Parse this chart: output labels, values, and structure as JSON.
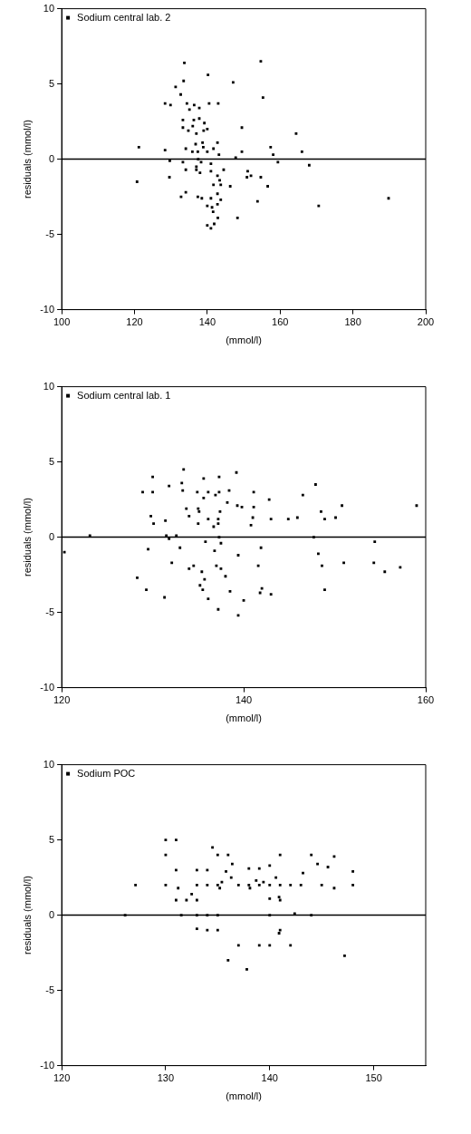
{
  "chart_data": [
    {
      "type": "scatter",
      "xlabel": "(mmol/l)",
      "ylabel": "residuals (mmol/l)",
      "xlim": [
        100,
        200
      ],
      "xticks": [
        100,
        120,
        140,
        160,
        180,
        200
      ],
      "ylim": [
        -10,
        10
      ],
      "yticks": [
        -10,
        -5,
        0,
        5,
        10
      ],
      "legend": "top left",
      "marker": "square",
      "grid": false,
      "ref_lines": [
        {
          "axis": "y",
          "value": 0
        }
      ],
      "series": [
        {
          "name": "Sodium central lab. 2",
          "color": "#000000",
          "x": [
            133.7,
            154.7,
            140.2,
            147.1,
            133.5,
            131.3,
            132.7,
            155.3,
            128.4,
            129.9,
            134.4,
            136.4,
            135.1,
            137.8,
            140.5,
            143.0,
            137.8,
            136.3,
            133.3,
            139.2,
            133.3,
            136.0,
            134.8,
            137.0,
            139.0,
            140.0,
            149.5,
            164.4,
            136.8,
            138.7,
            142.8,
            138.9,
            141.7,
            121.2,
            128.4,
            134.1,
            135.9,
            137.4,
            140.0,
            143.2,
            149.5,
            157.4,
            166.0,
            158.1,
            147.8,
            129.7,
            133.3,
            137.5,
            138.3,
            141.0,
            159.4,
            168.0,
            141.0,
            144.5,
            134.1,
            137.0,
            137.0,
            138.0,
            151.1,
            142.8,
            129.6,
            143.4,
            150.9,
            152.0,
            154.7,
            120.7,
            141.7,
            143.7,
            146.3,
            156.6,
            132.8,
            134.1,
            137.4,
            138.5,
            141.0,
            142.8,
            143.7,
            142.8,
            140.0,
            141.3,
            141.6,
            153.8,
            170.6,
            189.8,
            148.3,
            142.9,
            141.9,
            140.0,
            141.0
          ],
          "values": [
            6.4,
            6.5,
            5.6,
            5.1,
            5.2,
            4.8,
            4.3,
            4.1,
            3.7,
            3.6,
            3.7,
            3.6,
            3.3,
            3.4,
            3.7,
            3.7,
            2.7,
            2.6,
            2.6,
            2.4,
            2.1,
            2.2,
            1.9,
            1.7,
            1.9,
            2.0,
            2.1,
            1.7,
            1.0,
            1.1,
            1.1,
            0.8,
            0.7,
            0.8,
            0.6,
            0.7,
            0.5,
            0.5,
            0.5,
            0.3,
            0.5,
            0.8,
            0.5,
            0.3,
            0.1,
            -0.1,
            -0.2,
            0.0,
            -0.2,
            -0.3,
            -0.2,
            -0.4,
            -0.8,
            -0.7,
            -0.7,
            -0.5,
            -0.7,
            -0.9,
            -0.8,
            -1.1,
            -1.2,
            -1.4,
            -1.2,
            -1.1,
            -1.2,
            -1.5,
            -1.7,
            -1.7,
            -1.8,
            -1.8,
            -2.5,
            -2.2,
            -2.5,
            -2.6,
            -2.6,
            -2.3,
            -2.7,
            -3.0,
            -3.1,
            -3.2,
            -3.5,
            -2.8,
            -3.1,
            -2.6,
            -3.9,
            -3.9,
            -4.3,
            -4.4,
            -4.6
          ]
        }
      ]
    },
    {
      "type": "scatter",
      "xlabel": "(mmol/l)",
      "ylabel": "residuals (mmol/l)",
      "xlim": [
        120,
        160
      ],
      "xticks": [
        120,
        140,
        160
      ],
      "ylim": [
        -10,
        10
      ],
      "yticks": [
        -10,
        -5,
        0,
        5,
        10
      ],
      "legend": "top left",
      "marker": "square",
      "grid": false,
      "ref_lines": [
        {
          "axis": "y",
          "value": 0
        }
      ],
      "series": [
        {
          "name": "Sodium central lab. 1",
          "color": "#000000",
          "x": [
            133.4,
            130.0,
            135.6,
            137.3,
            139.2,
            131.8,
            133.2,
            133.3,
            128.9,
            130.0,
            134.9,
            136.1,
            135.6,
            136.9,
            137.3,
            138.4,
            141.1,
            142.8,
            146.5,
            147.9,
            138.2,
            139.3,
            139.8,
            141.1,
            133.7,
            135.0,
            135.1,
            134.0,
            137.4,
            148.5,
            150.8,
            129.8,
            131.4,
            130.1,
            135.0,
            136.1,
            137.2,
            137.2,
            136.7,
            141.0,
            140.8,
            143.0,
            144.9,
            145.9,
            148.9,
            150.1,
            131.5,
            131.8,
            132.6,
            135.8,
            137.3,
            137.5,
            147.7,
            133.0,
            129.5,
            136.8,
            141.9,
            154.4,
            139.4,
            148.2,
            132.1,
            134.5,
            134.0,
            135.4,
            137.0,
            137.5,
            138.0,
            141.6,
            148.6,
            151.0,
            154.3,
            155.5,
            157.2,
            135.7,
            135.2,
            135.5,
            128.3,
            129.3,
            131.3,
            136.1,
            138.5,
            140.0,
            142.0,
            141.8,
            143.0,
            148.9,
            137.2,
            139.4,
            120.3,
            123.1,
            159.0
          ],
          "values": [
            4.5,
            4.0,
            3.9,
            4.0,
            4.3,
            3.4,
            3.6,
            3.1,
            3.0,
            3.0,
            3.0,
            3.0,
            2.6,
            2.8,
            3.0,
            3.1,
            3.0,
            2.5,
            2.8,
            3.5,
            2.3,
            2.1,
            2.0,
            2.0,
            1.9,
            1.9,
            1.7,
            1.4,
            1.7,
            1.7,
            2.1,
            1.4,
            1.1,
            0.9,
            0.9,
            1.2,
            1.2,
            0.9,
            0.7,
            1.3,
            0.8,
            1.2,
            1.2,
            1.3,
            1.2,
            1.3,
            0.1,
            -0.1,
            0.1,
            -0.3,
            0.0,
            -0.4,
            0.0,
            -0.7,
            -0.8,
            -0.9,
            -0.7,
            -0.3,
            -1.2,
            -1.1,
            -1.7,
            -1.9,
            -2.1,
            -2.3,
            -1.9,
            -2.1,
            -2.6,
            -1.9,
            -1.9,
            -1.7,
            -1.7,
            -2.3,
            -2.0,
            -2.8,
            -3.2,
            -3.5,
            -2.7,
            -3.5,
            -4.0,
            -4.1,
            -3.6,
            -4.2,
            -3.4,
            -3.7,
            -3.8,
            -3.5,
            -4.8,
            -5.2,
            -1.0,
            0.1,
            2.1
          ]
        }
      ]
    },
    {
      "type": "scatter",
      "xlabel": "(mmol/l)",
      "ylabel": "residuals (mmol/l)",
      "xlim": [
        120,
        155
      ],
      "xticks": [
        120,
        130,
        140,
        150
      ],
      "ylim": [
        -10,
        10
      ],
      "yticks": [
        -10,
        -5,
        0,
        5,
        10
      ],
      "legend": "top left",
      "marker": "square",
      "grid": false,
      "ref_lines": [
        {
          "axis": "y",
          "value": 0
        }
      ],
      "series": [
        {
          "name": "Sodium POC",
          "color": "#000000",
          "x": [
            130,
            131,
            130,
            134.5,
            135,
            136,
            141,
            144,
            144.6,
            145.6,
            146.2,
            148,
            131,
            133,
            134,
            135.8,
            136.4,
            138,
            139,
            140,
            140.6,
            143.2,
            136.3,
            127.1,
            130,
            131.2,
            133,
            134,
            135,
            135.4,
            135.2,
            137,
            138,
            138.1,
            138.7,
            139,
            139.4,
            140,
            141,
            142,
            143,
            145,
            146.2,
            148,
            131,
            132,
            132.5,
            133,
            140,
            140.9,
            141,
            126.1,
            131.5,
            133,
            134,
            135,
            140,
            142.4,
            144,
            133,
            134,
            135,
            141,
            140.9,
            137,
            139,
            140,
            142,
            136,
            137.8,
            147.2
          ],
          "values": [
            5.0,
            5.0,
            4.0,
            4.5,
            4.0,
            4.0,
            4.0,
            4.0,
            3.4,
            3.2,
            3.9,
            2.9,
            3.0,
            3.0,
            3.0,
            2.9,
            3.4,
            3.1,
            3.1,
            3.3,
            2.5,
            2.8,
            2.5,
            2.0,
            2.0,
            1.8,
            2.0,
            2.0,
            2.0,
            2.2,
            1.8,
            2.0,
            2.0,
            1.8,
            2.3,
            2.0,
            2.2,
            2.0,
            2.0,
            2.0,
            2.0,
            2.0,
            1.8,
            2.0,
            1.0,
            1.0,
            1.4,
            1.0,
            1.1,
            1.2,
            1.0,
            0.0,
            0.0,
            0.0,
            0.0,
            0.0,
            0.0,
            0.1,
            0.0,
            -0.9,
            -1.0,
            -1.0,
            -1.0,
            -1.2,
            -2.0,
            -2.0,
            -2.0,
            -2.0,
            -3.0,
            -3.6,
            -2.7
          ]
        }
      ]
    }
  ]
}
